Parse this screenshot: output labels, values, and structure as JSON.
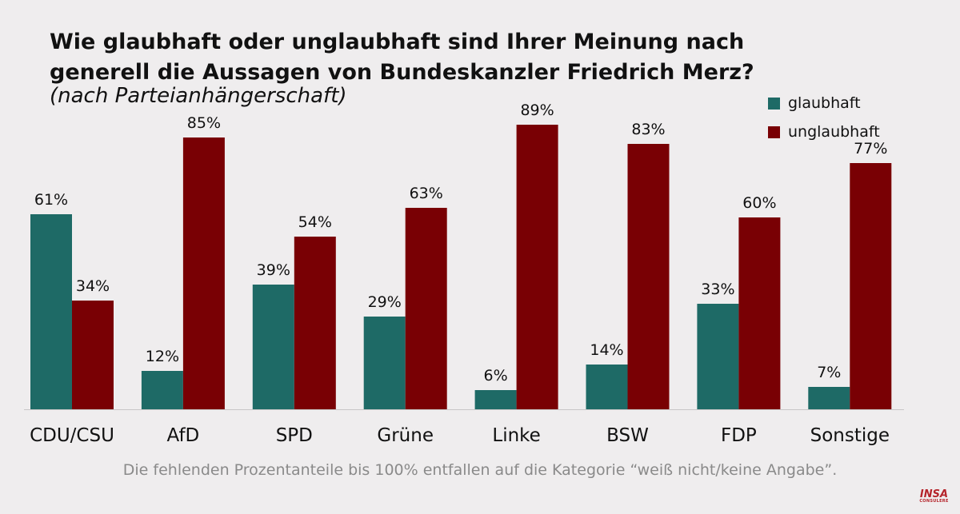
{
  "colors": {
    "glaubhaft": "#1e6a66",
    "unglaubhaft": "#790004",
    "background": "#efedee"
  },
  "chart_data": {
    "type": "bar",
    "title": "Wie glaubhaft oder unglaubhaft sind Ihrer Meinung nach generell die Aussagen von Bundeskanzler Friedrich Merz?",
    "subtitle": "(nach Parteianhängerschaft)",
    "categories": [
      "CDU/CSU",
      "AfD",
      "SPD",
      "Grüne",
      "Linke",
      "BSW",
      "FDP",
      "Sonstige"
    ],
    "series": [
      {
        "name": "glaubhaft",
        "values": [
          61,
          12,
          39,
          29,
          6,
          14,
          33,
          7
        ],
        "labels": [
          "61%",
          "12%",
          "39%",
          "29%",
          "6%",
          "14%",
          "33%",
          "7%"
        ]
      },
      {
        "name": "unglaubhaft",
        "values": [
          34,
          85,
          54,
          63,
          89,
          83,
          60,
          77
        ],
        "labels": [
          "34%",
          "85%",
          "54%",
          "63%",
          "89%",
          "83%",
          "60%",
          "77%"
        ]
      }
    ],
    "ylim": [
      0,
      100
    ],
    "grid": false,
    "legend": "top-right",
    "footnote": "Die fehlenden Prozentanteile bis 100% entfallen auf die Kategorie “weiß nicht/keine Angabe”."
  },
  "logo": {
    "line1": "INSA",
    "line2": "CONSULERE"
  }
}
